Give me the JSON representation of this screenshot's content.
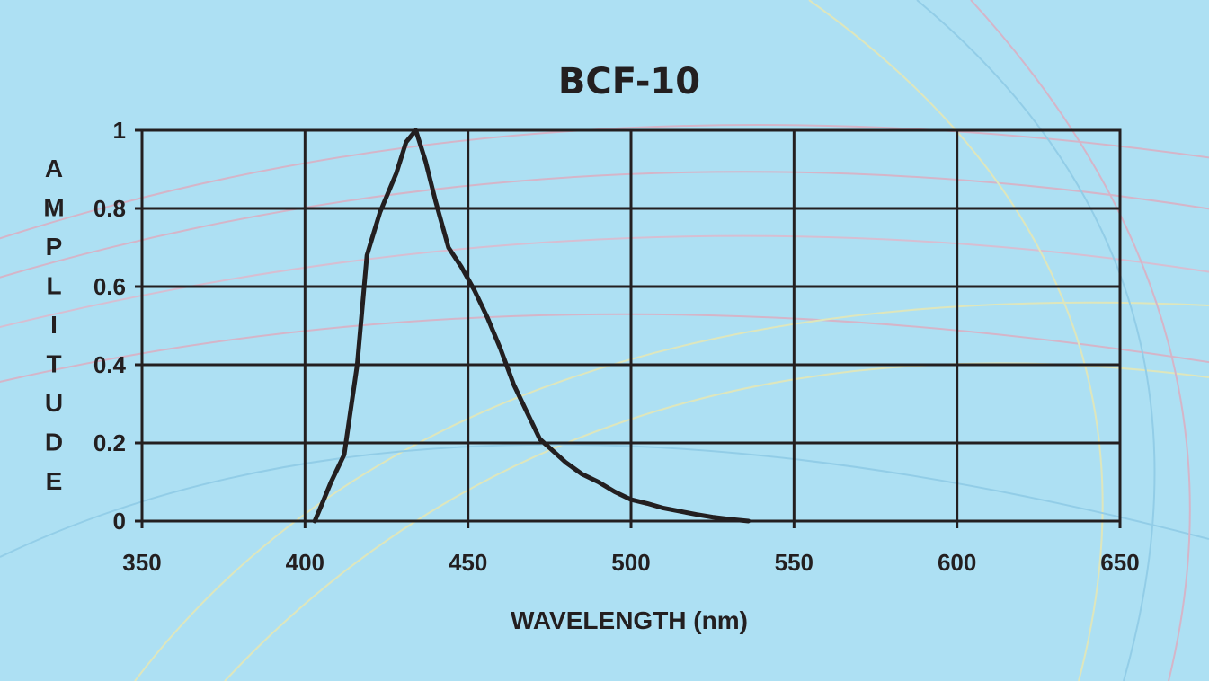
{
  "chart_data": {
    "type": "line",
    "title": "BCF-10",
    "xlabel": "WAVELENGTH (nm)",
    "ylabel": "AMPLITUDE",
    "xlim": [
      350,
      650
    ],
    "ylim": [
      0,
      1
    ],
    "x_ticks": [
      350,
      400,
      450,
      500,
      550,
      600,
      650
    ],
    "y_ticks": [
      0,
      0.2,
      0.4,
      0.6,
      0.8,
      1
    ],
    "y_tick_labels": [
      "0",
      "0.2",
      "0.4",
      "0.6",
      "0.8",
      "1"
    ],
    "grid": true,
    "background_color": "#ade0f3",
    "line_color": "#231f20",
    "series": [
      {
        "x": [
          403,
          405,
          408,
          412,
          416,
          419,
          423,
          428,
          431,
          434,
          437,
          440,
          444,
          448,
          452,
          456,
          460,
          464,
          468,
          472,
          476,
          480,
          485,
          490,
          495,
          500,
          505,
          510,
          515,
          520,
          525,
          530,
          536
        ],
        "y": [
          0,
          0.04,
          0.1,
          0.17,
          0.4,
          0.68,
          0.79,
          0.89,
          0.97,
          1.0,
          0.92,
          0.82,
          0.7,
          0.65,
          0.59,
          0.52,
          0.44,
          0.35,
          0.28,
          0.21,
          0.18,
          0.15,
          0.12,
          0.1,
          0.075,
          0.055,
          0.045,
          0.033,
          0.025,
          0.017,
          0.01,
          0.005,
          0
        ]
      }
    ]
  }
}
